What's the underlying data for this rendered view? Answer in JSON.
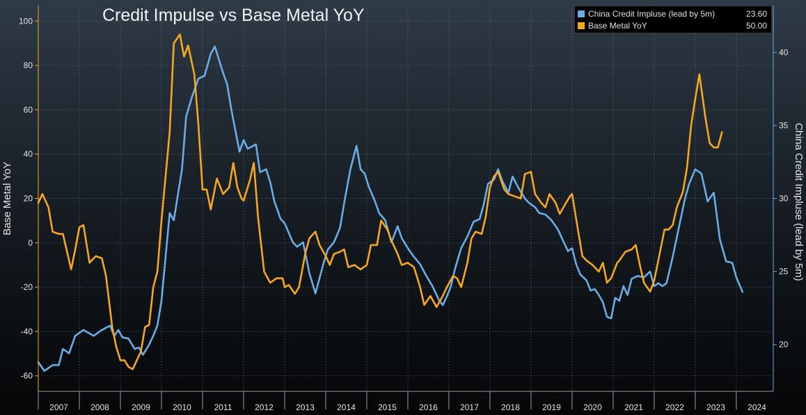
{
  "chart_data": {
    "type": "line",
    "title": "Credit Impulse vs Base Metal YoY",
    "left_axis": {
      "label": "Base Metal YoY",
      "range": [
        -67,
        107
      ],
      "ticks": [
        -60,
        -40,
        -20,
        0,
        20,
        40,
        60,
        80,
        100
      ]
    },
    "right_axis": {
      "label": "China Credit Impluse (lead by 5m)",
      "range": [
        16.8,
        43.2
      ],
      "ticks": [
        20,
        25,
        30,
        35,
        40
      ]
    },
    "x_axis": {
      "range": [
        2007.0,
        2024.9
      ],
      "labels": [
        "2007",
        "2008",
        "2009",
        "2010",
        "2011",
        "2012",
        "2013",
        "2014",
        "2015",
        "2016",
        "2017",
        "2018",
        "2019",
        "2020",
        "2021",
        "2022",
        "2023",
        "2024"
      ]
    },
    "grid": true,
    "legend_position": "top-right",
    "colors": {
      "impulse": "#6aaee8",
      "metal": "#f6a821",
      "left_axis": "#f6a821",
      "right_axis": "#6aaee8"
    },
    "legend": [
      {
        "name": "China Credit Impluse (lead by 5m)",
        "value": "23.60",
        "color": "#6aaee8"
      },
      {
        "name": "Base Metal YoY",
        "value": "50.00",
        "color": "#f6a821"
      }
    ],
    "series": [
      {
        "name": "China Credit Impluse (lead by 5m)",
        "axis": "right",
        "points": [
          [
            2007.0,
            18.8
          ],
          [
            2007.15,
            18.2
          ],
          [
            2007.35,
            18.6
          ],
          [
            2007.5,
            18.6
          ],
          [
            2007.6,
            19.7
          ],
          [
            2007.75,
            19.4
          ],
          [
            2007.9,
            20.6
          ],
          [
            2008.1,
            21.0
          ],
          [
            2008.35,
            20.6
          ],
          [
            2008.55,
            21.0
          ],
          [
            2008.75,
            21.3
          ],
          [
            2008.85,
            20.6
          ],
          [
            2008.95,
            21.0
          ],
          [
            2009.05,
            20.5
          ],
          [
            2009.2,
            20.4
          ],
          [
            2009.35,
            19.7
          ],
          [
            2009.45,
            19.8
          ],
          [
            2009.55,
            19.3
          ],
          [
            2009.7,
            20.0
          ],
          [
            2009.8,
            20.6
          ],
          [
            2009.9,
            21.3
          ],
          [
            2010.0,
            23.0
          ],
          [
            2010.2,
            29.0
          ],
          [
            2010.3,
            28.5
          ],
          [
            2010.5,
            32.0
          ],
          [
            2010.6,
            35.6
          ],
          [
            2010.75,
            37.0
          ],
          [
            2010.9,
            38.2
          ],
          [
            2011.05,
            38.4
          ],
          [
            2011.2,
            39.9
          ],
          [
            2011.3,
            40.4
          ],
          [
            2011.5,
            38.6
          ],
          [
            2011.6,
            37.8
          ],
          [
            2011.7,
            36.1
          ],
          [
            2011.9,
            33.2
          ],
          [
            2012.0,
            34.0
          ],
          [
            2012.1,
            33.4
          ],
          [
            2012.3,
            33.7
          ],
          [
            2012.4,
            31.8
          ],
          [
            2012.55,
            32.0
          ],
          [
            2012.65,
            31.1
          ],
          [
            2012.75,
            29.8
          ],
          [
            2012.9,
            28.6
          ],
          [
            2013.0,
            28.3
          ],
          [
            2013.2,
            27.0
          ],
          [
            2013.3,
            26.7
          ],
          [
            2013.45,
            27.0
          ],
          [
            2013.6,
            24.9
          ],
          [
            2013.75,
            23.5
          ],
          [
            2013.95,
            25.6
          ],
          [
            2014.05,
            26.5
          ],
          [
            2014.2,
            27.0
          ],
          [
            2014.35,
            28.0
          ],
          [
            2014.45,
            29.7
          ],
          [
            2014.6,
            32.0
          ],
          [
            2014.75,
            33.6
          ],
          [
            2014.85,
            32.0
          ],
          [
            2014.95,
            31.7
          ],
          [
            2015.05,
            30.8
          ],
          [
            2015.2,
            29.8
          ],
          [
            2015.3,
            29.0
          ],
          [
            2015.45,
            28.5
          ],
          [
            2015.6,
            27.0
          ],
          [
            2015.75,
            28.1
          ],
          [
            2015.85,
            27.3
          ],
          [
            2016.0,
            26.6
          ],
          [
            2016.15,
            26.0
          ],
          [
            2016.3,
            25.5
          ],
          [
            2016.45,
            24.7
          ],
          [
            2016.6,
            24.0
          ],
          [
            2016.75,
            23.1
          ],
          [
            2016.85,
            22.7
          ],
          [
            2016.95,
            23.3
          ],
          [
            2017.05,
            24.0
          ],
          [
            2017.15,
            25.2
          ],
          [
            2017.3,
            26.6
          ],
          [
            2017.45,
            27.4
          ],
          [
            2017.6,
            28.4
          ],
          [
            2017.75,
            28.6
          ],
          [
            2017.85,
            29.6
          ],
          [
            2017.95,
            31.0
          ],
          [
            2018.1,
            31.3
          ],
          [
            2018.2,
            32.0
          ],
          [
            2018.3,
            31.2
          ],
          [
            2018.45,
            30.4
          ],
          [
            2018.55,
            31.5
          ],
          [
            2018.7,
            30.7
          ],
          [
            2018.85,
            30.0
          ],
          [
            2018.95,
            29.7
          ],
          [
            2019.1,
            29.4
          ],
          [
            2019.2,
            29.0
          ],
          [
            2019.35,
            28.9
          ],
          [
            2019.5,
            28.5
          ],
          [
            2019.65,
            27.9
          ],
          [
            2019.8,
            27.0
          ],
          [
            2019.9,
            26.4
          ],
          [
            2020.0,
            26.6
          ],
          [
            2020.1,
            25.5
          ],
          [
            2020.2,
            24.8
          ],
          [
            2020.35,
            24.4
          ],
          [
            2020.45,
            23.7
          ],
          [
            2020.55,
            23.8
          ],
          [
            2020.65,
            23.4
          ],
          [
            2020.75,
            22.9
          ],
          [
            2020.85,
            21.9
          ],
          [
            2020.95,
            21.8
          ],
          [
            2021.05,
            23.2
          ],
          [
            2021.15,
            23.0
          ],
          [
            2021.25,
            24.0
          ],
          [
            2021.35,
            23.4
          ],
          [
            2021.45,
            24.5
          ],
          [
            2021.6,
            24.7
          ],
          [
            2021.75,
            24.6
          ],
          [
            2021.9,
            25.0
          ],
          [
            2022.0,
            24.0
          ],
          [
            2022.1,
            24.2
          ],
          [
            2022.2,
            24.0
          ],
          [
            2022.3,
            24.2
          ],
          [
            2022.45,
            26.0
          ],
          [
            2022.6,
            28.0
          ],
          [
            2022.75,
            30.0
          ],
          [
            2022.85,
            31.0
          ],
          [
            2023.0,
            32.0
          ],
          [
            2023.15,
            31.7
          ],
          [
            2023.3,
            29.8
          ],
          [
            2023.45,
            30.4
          ],
          [
            2023.6,
            27.2
          ],
          [
            2023.75,
            25.7
          ],
          [
            2023.9,
            25.6
          ],
          [
            2024.0,
            24.6
          ],
          [
            2024.15,
            23.6
          ]
        ]
      },
      {
        "name": "Base Metal YoY",
        "axis": "left",
        "points": [
          [
            2007.0,
            18.0
          ],
          [
            2007.1,
            22.0
          ],
          [
            2007.25,
            16.0
          ],
          [
            2007.35,
            5.0
          ],
          [
            2007.5,
            4.0
          ],
          [
            2007.6,
            4.0
          ],
          [
            2007.8,
            -12.0
          ],
          [
            2007.9,
            -3.0
          ],
          [
            2008.0,
            7.0
          ],
          [
            2008.1,
            8.0
          ],
          [
            2008.25,
            -9.0
          ],
          [
            2008.4,
            -6.0
          ],
          [
            2008.55,
            -7.0
          ],
          [
            2008.65,
            -15.0
          ],
          [
            2008.8,
            -38.0
          ],
          [
            2008.9,
            -47.0
          ],
          [
            2009.0,
            -53.0
          ],
          [
            2009.1,
            -53.0
          ],
          [
            2009.2,
            -56.0
          ],
          [
            2009.3,
            -57.0
          ],
          [
            2009.4,
            -53.0
          ],
          [
            2009.5,
            -49.0
          ],
          [
            2009.6,
            -38.0
          ],
          [
            2009.7,
            -37.0
          ],
          [
            2009.8,
            -20.0
          ],
          [
            2009.9,
            -13.0
          ],
          [
            2010.0,
            10.0
          ],
          [
            2010.1,
            30.0
          ],
          [
            2010.2,
            50.0
          ],
          [
            2010.3,
            90.0
          ],
          [
            2010.45,
            94.0
          ],
          [
            2010.55,
            84.0
          ],
          [
            2010.65,
            89.0
          ],
          [
            2010.8,
            76.0
          ],
          [
            2010.9,
            53.0
          ],
          [
            2011.0,
            24.0
          ],
          [
            2011.1,
            24.0
          ],
          [
            2011.2,
            15.0
          ],
          [
            2011.35,
            29.0
          ],
          [
            2011.5,
            22.0
          ],
          [
            2011.65,
            25.0
          ],
          [
            2011.75,
            36.0
          ],
          [
            2011.85,
            25.0
          ],
          [
            2011.95,
            20.0
          ],
          [
            2012.0,
            19.0
          ],
          [
            2012.15,
            28.0
          ],
          [
            2012.25,
            36.0
          ],
          [
            2012.35,
            12.0
          ],
          [
            2012.5,
            -13.0
          ],
          [
            2012.65,
            -18.0
          ],
          [
            2012.8,
            -16.0
          ],
          [
            2012.95,
            -16.0
          ],
          [
            2013.0,
            -20.0
          ],
          [
            2013.1,
            -19.0
          ],
          [
            2013.25,
            -23.0
          ],
          [
            2013.35,
            -20.0
          ],
          [
            2013.5,
            -5.0
          ],
          [
            2013.6,
            2.0
          ],
          [
            2013.75,
            5.0
          ],
          [
            2013.85,
            -1.0
          ],
          [
            2014.0,
            -6.0
          ],
          [
            2014.1,
            -10.0
          ],
          [
            2014.2,
            -5.0
          ],
          [
            2014.35,
            -4.0
          ],
          [
            2014.45,
            -3.0
          ],
          [
            2014.55,
            -11.0
          ],
          [
            2014.7,
            -10.0
          ],
          [
            2014.85,
            -12.0
          ],
          [
            2015.0,
            -10.0
          ],
          [
            2015.1,
            -1.0
          ],
          [
            2015.25,
            -1.0
          ],
          [
            2015.35,
            10.0
          ],
          [
            2015.5,
            6.0
          ],
          [
            2015.6,
            1.0
          ],
          [
            2015.75,
            -5.0
          ],
          [
            2015.85,
            -10.0
          ],
          [
            2016.0,
            -9.0
          ],
          [
            2016.15,
            -11.0
          ],
          [
            2016.3,
            -20.0
          ],
          [
            2016.4,
            -28.0
          ],
          [
            2016.55,
            -24.0
          ],
          [
            2016.7,
            -29.0
          ],
          [
            2016.85,
            -24.0
          ],
          [
            2016.95,
            -20.0
          ],
          [
            2017.1,
            -15.0
          ],
          [
            2017.2,
            -16.0
          ],
          [
            2017.3,
            -20.0
          ],
          [
            2017.45,
            -9.0
          ],
          [
            2017.55,
            2.0
          ],
          [
            2017.65,
            5.0
          ],
          [
            2017.8,
            4.0
          ],
          [
            2017.9,
            12.0
          ],
          [
            2018.0,
            25.0
          ],
          [
            2018.1,
            30.0
          ],
          [
            2018.2,
            32.0
          ],
          [
            2018.35,
            24.0
          ],
          [
            2018.45,
            22.0
          ],
          [
            2018.6,
            21.0
          ],
          [
            2018.75,
            20.0
          ],
          [
            2018.85,
            31.0
          ],
          [
            2019.0,
            32.0
          ],
          [
            2019.1,
            22.0
          ],
          [
            2019.25,
            18.0
          ],
          [
            2019.35,
            16.0
          ],
          [
            2019.45,
            22.0
          ],
          [
            2019.6,
            18.0
          ],
          [
            2019.7,
            13.0
          ],
          [
            2019.85,
            18.0
          ],
          [
            2019.95,
            21.0
          ],
          [
            2020.0,
            22.0
          ],
          [
            2020.15,
            5.0
          ],
          [
            2020.25,
            -6.0
          ],
          [
            2020.35,
            -8.0
          ],
          [
            2020.5,
            -10.0
          ],
          [
            2020.65,
            -13.0
          ],
          [
            2020.75,
            -9.0
          ],
          [
            2020.85,
            -18.0
          ],
          [
            2020.95,
            -16.0
          ],
          [
            2021.1,
            -9.0
          ],
          [
            2021.15,
            -8.0
          ],
          [
            2021.3,
            -4.0
          ],
          [
            2021.45,
            -3.0
          ],
          [
            2021.55,
            -1.0
          ],
          [
            2021.65,
            -10.0
          ],
          [
            2021.75,
            -18.0
          ],
          [
            2021.9,
            -22.0
          ],
          [
            2022.0,
            -17.0
          ],
          [
            2022.1,
            -8.0
          ],
          [
            2022.25,
            6.0
          ],
          [
            2022.35,
            6.0
          ],
          [
            2022.45,
            8.0
          ],
          [
            2022.55,
            16.0
          ],
          [
            2022.7,
            23.0
          ],
          [
            2022.8,
            34.0
          ],
          [
            2022.9,
            53.0
          ],
          [
            2023.0,
            65.0
          ],
          [
            2023.1,
            76.0
          ],
          [
            2023.25,
            56.0
          ],
          [
            2023.35,
            45.0
          ],
          [
            2023.45,
            43.0
          ],
          [
            2023.55,
            43.0
          ],
          [
            2023.65,
            50.0
          ]
        ]
      }
    ]
  }
}
